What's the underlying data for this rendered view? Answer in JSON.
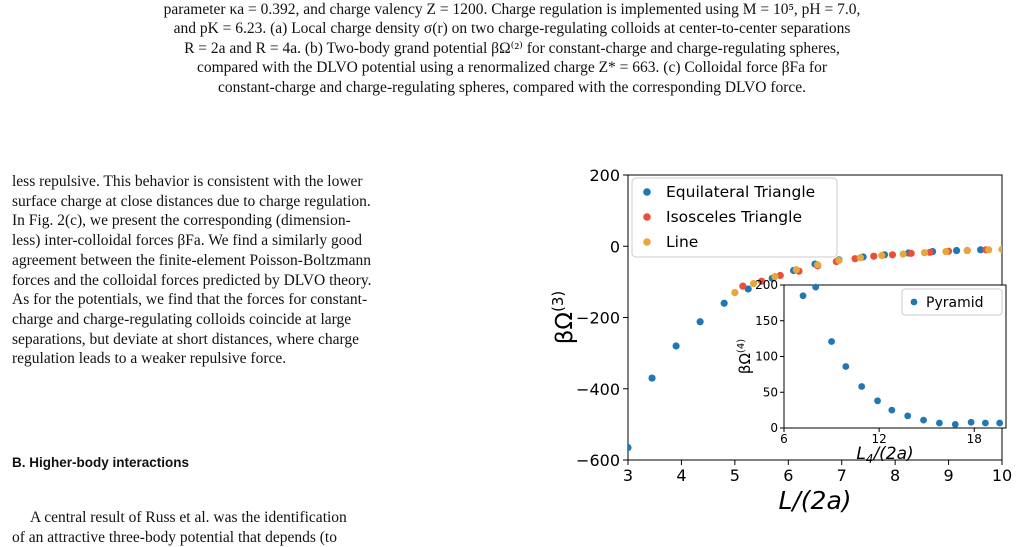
{
  "caption": {
    "line1": "parameter κa = 0.392, and charge valency Z = 1200. Charge regulation is implemented using M = 10⁵, pH = 7.0,",
    "line2": "and pK = 6.23. (a) Local charge density σ(r) on two charge-regulating colloids at center-to-center separations",
    "line3": "R = 2a and R = 4a. (b) Two-body grand potential βΩ⁽²⁾ for constant-charge and charge-regulating spheres,",
    "line4": "compared with the DLVO potential using a renormalized charge Z* = 663. (c) Colloidal force βFa for",
    "line5": "constant-charge and charge-regulating spheres, compared with the corresponding DLVO force."
  },
  "body": {
    "lines": [
      "less repulsive. This behavior is consistent with the lower",
      "surface charge at close distances due to charge regulation.",
      "In Fig. 2(c), we present the corresponding (dimension-",
      "less) inter-colloidal forces βFa. We find a similarly good",
      "agreement between the finite-element Poisson-Boltzmann",
      "forces and the colloidal forces predicted by DLVO theory.",
      "As for the potentials, we find that the forces for constant-",
      "charge and charge-regulating colloids coincide at large",
      "separations, but deviate at short distances, where charge",
      "regulation leads to a weaker repulsive force."
    ],
    "section_heading": "B.   Higher-body interactions",
    "para2_line1": "A central result of Russ et al. was the identification",
    "para2_line2": "of an attractive three-body potential that depends (to"
  },
  "chart_data": {
    "type": "scatter",
    "xlabel": "L/(2a)",
    "ylabel": "βΩ(3)",
    "xlim": [
      3,
      10
    ],
    "ylim": [
      -600,
      200
    ],
    "xticks": [
      "3",
      "4",
      "5",
      "6",
      "7",
      "8",
      "9",
      "10"
    ],
    "yticks": [
      "−600",
      "−400",
      "−200",
      "0",
      "200"
    ],
    "grid": false,
    "legend_placement": "top-left",
    "series": [
      {
        "name": "Equilateral Triangle",
        "color": "#1f77b4",
        "x": [
          3.0,
          3.45,
          3.9,
          4.35,
          4.8,
          5.25,
          5.7,
          6.1,
          6.5,
          6.95,
          7.4,
          7.8,
          8.25,
          8.7,
          9.15,
          9.6
        ],
        "y": [
          -565,
          -370,
          -280,
          -212,
          -160,
          -120,
          -90,
          -68,
          -50,
          -38,
          -30,
          -24,
          -19,
          -15,
          -12,
          -10
        ]
      },
      {
        "name": "Isosceles Triangle",
        "color": "#e8503a",
        "x": [
          5.15,
          5.5,
          5.85,
          6.2,
          6.55,
          6.9,
          7.25,
          7.6,
          7.95,
          8.3,
          8.65,
          9.0,
          9.35,
          9.7
        ],
        "y": [
          -112,
          -98,
          -82,
          -70,
          -55,
          -43,
          -35,
          -28,
          -24,
          -20,
          -17,
          -14,
          -12,
          -10
        ]
      },
      {
        "name": "Line",
        "color": "#e6a83c",
        "x": [
          5.0,
          5.35,
          5.75,
          6.15,
          6.55,
          6.95,
          7.35,
          7.75,
          8.15,
          8.55,
          8.95,
          9.35,
          9.75,
          10.0
        ],
        "y": [
          -130,
          -105,
          -85,
          -66,
          -52,
          -40,
          -32,
          -26,
          -22,
          -18,
          -15,
          -12,
          -10,
          -9
        ]
      }
    ],
    "inset": {
      "type": "scatter",
      "xlabel": "L4/(2a)",
      "ylabel": "βΩ(4)",
      "xlim": [
        6,
        20
      ],
      "ylim": [
        0,
        200
      ],
      "xticks": [
        "6",
        "12",
        "18"
      ],
      "yticks": [
        "0",
        "50",
        "100",
        "150",
        "200"
      ],
      "legend_placement": "top-right",
      "series": [
        {
          "name": "Pyramid",
          "color": "#1f77b4",
          "x": [
            7.2,
            8.0,
            9.0,
            9.9,
            10.9,
            11.9,
            12.8,
            13.8,
            14.8,
            15.8,
            16.8,
            17.8,
            18.7,
            19.6
          ],
          "y": [
            185,
            197,
            121,
            86,
            58,
            38,
            25,
            17,
            11,
            7,
            5,
            8,
            7,
            7
          ]
        }
      ]
    }
  }
}
